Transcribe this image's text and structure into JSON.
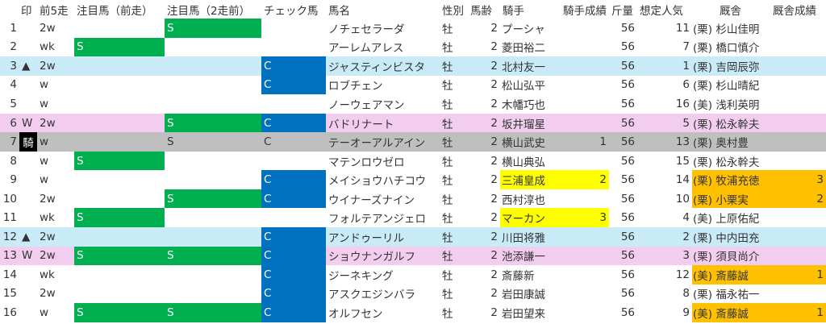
{
  "headers": {
    "mark": "印",
    "prev5": "前5走",
    "focus_prev": "注目馬（前走）",
    "focus_prev2": "注目馬（2走前）",
    "check": "チェック馬",
    "name": "馬名",
    "sex": "性別",
    "age": "馬齢",
    "jockey": "騎手",
    "jockey_score": "騎手成績",
    "weight": "斤量",
    "popularity": "想定人気",
    "stable": "厩舎",
    "stable_score": "厩舎成績"
  },
  "colors": {
    "green": "#00b050",
    "blue": "#0070c0",
    "yellow": "#ffff00",
    "orange": "#ffc000",
    "row_triangle": "#c9ebf8",
    "row_w": "#f2cdef",
    "row_ki": "#bfbfbf"
  },
  "rows": [
    {
      "num": "1",
      "mark": "",
      "prev5": "2w",
      "s1": "",
      "s2": "S",
      "check": "",
      "name": "ノチェセラーダ",
      "sex": "牡",
      "age": "2",
      "jockey": "プーシャ",
      "jscore": "",
      "weight": "56",
      "pop": "11",
      "stable": "(栗) 杉山佳明",
      "sscore": ""
    },
    {
      "num": "2",
      "mark": "",
      "prev5": "wk",
      "s1": "S",
      "s2": "",
      "check": "",
      "name": "アーレムアレス",
      "sex": "牡",
      "age": "2",
      "jockey": "菱田裕二",
      "jscore": "",
      "weight": "56",
      "pop": "7",
      "stable": "(栗) 橋口慎介",
      "sscore": ""
    },
    {
      "num": "3",
      "mark": "▲",
      "prev5": "2w",
      "s1": "",
      "s2": "",
      "check": "C",
      "name": "ジャスティンビスタ",
      "sex": "牡",
      "age": "2",
      "jockey": "北村友一",
      "jscore": "",
      "weight": "56",
      "pop": "1",
      "stable": "(栗) 吉岡辰弥",
      "sscore": ""
    },
    {
      "num": "4",
      "mark": "",
      "prev5": "w",
      "s1": "",
      "s2": "",
      "check": "C",
      "name": "ロブチェン",
      "sex": "牡",
      "age": "2",
      "jockey": "松山弘平",
      "jscore": "",
      "weight": "56",
      "pop": "6",
      "stable": "(栗) 杉山晴紀",
      "sscore": ""
    },
    {
      "num": "5",
      "mark": "",
      "prev5": "w",
      "s1": "",
      "s2": "",
      "check": "",
      "name": "ノーウェアマン",
      "sex": "牡",
      "age": "2",
      "jockey": "木幡巧也",
      "jscore": "",
      "weight": "56",
      "pop": "16",
      "stable": "(美) 浅利英明",
      "sscore": ""
    },
    {
      "num": "6",
      "mark": "W",
      "prev5": "2w",
      "s1": "",
      "s2": "S",
      "check": "C",
      "name": "バドリナート",
      "sex": "牡",
      "age": "2",
      "jockey": "坂井瑠星",
      "jscore": "",
      "weight": "56",
      "pop": "5",
      "stable": "(栗) 松永幹夫",
      "sscore": ""
    },
    {
      "num": "7",
      "mark": "騎",
      "prev5": "w",
      "s1": "",
      "s2": "S",
      "check": "C",
      "name": "テーオーアルアイン",
      "sex": "牡",
      "age": "2",
      "jockey": "横山武史",
      "jscore": "1",
      "weight": "56",
      "pop": "13",
      "stable": "(栗) 奥村豊",
      "sscore": ""
    },
    {
      "num": "8",
      "mark": "",
      "prev5": "w",
      "s1": "S",
      "s2": "",
      "check": "",
      "name": "マテンロウゼロ",
      "sex": "牡",
      "age": "2",
      "jockey": "横山典弘",
      "jscore": "",
      "weight": "56",
      "pop": "15",
      "stable": "(栗) 松永幹夫",
      "sscore": ""
    },
    {
      "num": "9",
      "mark": "",
      "prev5": "w",
      "s1": "",
      "s2": "",
      "check": "C",
      "name": "メイショウハチコウ",
      "sex": "牡",
      "age": "2",
      "jockey": "三浦皇成",
      "jscore": "2",
      "weight": "56",
      "pop": "14",
      "stable": "(栗) 牧浦充徳",
      "sscore": "3"
    },
    {
      "num": "10",
      "mark": "",
      "prev5": "2w",
      "s1": "",
      "s2": "S",
      "check": "C",
      "name": "ウイナーズナイン",
      "sex": "牡",
      "age": "2",
      "jockey": "西村淳也",
      "jscore": "",
      "weight": "56",
      "pop": "10",
      "stable": "(栗) 小栗実",
      "sscore": "2"
    },
    {
      "num": "11",
      "mark": "",
      "prev5": "wk",
      "s1": "S",
      "s2": "",
      "check": "",
      "name": "フォルテアンジェロ",
      "sex": "牡",
      "age": "2",
      "jockey": "マーカン",
      "jscore": "3",
      "weight": "56",
      "pop": "4",
      "stable": "(美) 上原佑紀",
      "sscore": ""
    },
    {
      "num": "12",
      "mark": "▲",
      "prev5": "2w",
      "s1": "",
      "s2": "",
      "check": "C",
      "name": "アンドゥーリル",
      "sex": "牡",
      "age": "2",
      "jockey": "川田将雅",
      "jscore": "",
      "weight": "56",
      "pop": "2",
      "stable": "(栗) 中内田充",
      "sscore": ""
    },
    {
      "num": "13",
      "mark": "W",
      "prev5": "2w",
      "s1": "S",
      "s2": "S",
      "check": "C",
      "name": "ショウナンガルフ",
      "sex": "牡",
      "age": "2",
      "jockey": "池添謙一",
      "jscore": "",
      "weight": "56",
      "pop": "3",
      "stable": "(栗) 須貝尚介",
      "sscore": ""
    },
    {
      "num": "14",
      "mark": "",
      "prev5": "wk",
      "s1": "",
      "s2": "",
      "check": "C",
      "name": "ジーネキング",
      "sex": "牡",
      "age": "2",
      "jockey": "斎藤新",
      "jscore": "",
      "weight": "56",
      "pop": "12",
      "stable": "(美) 斎藤誠",
      "sscore": "1"
    },
    {
      "num": "15",
      "mark": "",
      "prev5": "2w",
      "s1": "",
      "s2": "",
      "check": "C",
      "name": "アスクエジンバラ",
      "sex": "牡",
      "age": "2",
      "jockey": "岩田康誠",
      "jscore": "",
      "weight": "56",
      "pop": "8",
      "stable": "(栗) 福永祐一",
      "sscore": ""
    },
    {
      "num": "16",
      "mark": "",
      "prev5": "w",
      "s1": "S",
      "s2": "S",
      "check": "C",
      "name": "オルフセン",
      "sex": "牡",
      "age": "2",
      "jockey": "岩田望来",
      "jscore": "",
      "weight": "56",
      "pop": "9",
      "stable": "(美) 斎藤誠",
      "sscore": "1"
    }
  ]
}
